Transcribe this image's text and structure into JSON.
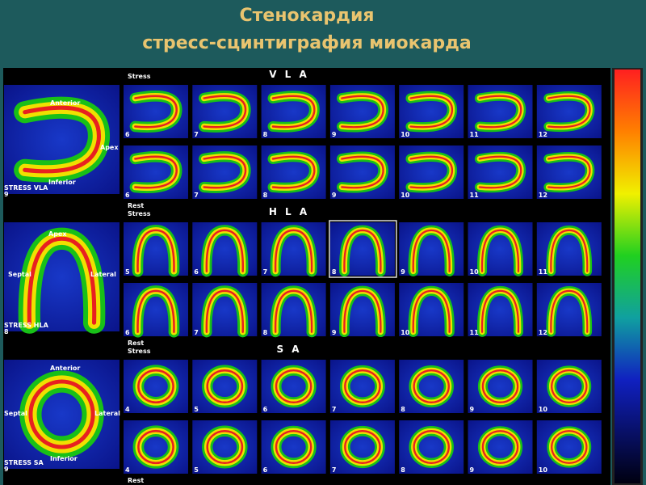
{
  "header": {
    "title_lines": [
      "Стенокардия",
      "стресс-сцинтиграфия миокарда"
    ]
  },
  "sections": [
    {
      "heading": "V L A",
      "stress_label": "Stress",
      "rest_label": "Rest",
      "big_labels": [
        "Anterior",
        "Apex",
        "Inferior"
      ],
      "big_caption": "STRESS VLA",
      "big_number": "9",
      "stress_numbers": [
        "6",
        "7",
        "8",
        "9",
        "10",
        "11",
        "12"
      ],
      "rest_numbers": [
        "6",
        "7",
        "8",
        "9",
        "10",
        "11",
        "12"
      ]
    },
    {
      "heading": "H L A",
      "stress_label": "Stress",
      "rest_label": "Rest",
      "big_labels": [
        "Apex",
        "Septal",
        "Lateral"
      ],
      "big_caption": "STRESS HLA",
      "big_number": "8",
      "stress_numbers": [
        "5",
        "6",
        "7",
        "8",
        "9",
        "10",
        "11"
      ],
      "rest_numbers": [
        "6",
        "7",
        "8",
        "9",
        "10",
        "11",
        "12"
      ]
    },
    {
      "heading": "S A",
      "stress_label": "Stress",
      "rest_label": "Rest",
      "big_labels": [
        "Anterior",
        "Septal",
        "Lateral",
        "Inferior"
      ],
      "big_caption": "STRESS SA",
      "big_number": "9",
      "stress_numbers": [
        "4",
        "5",
        "6",
        "7",
        "8",
        "9",
        "10"
      ],
      "rest_numbers": [
        "4",
        "5",
        "6",
        "7",
        "8",
        "9",
        "10"
      ]
    }
  ]
}
